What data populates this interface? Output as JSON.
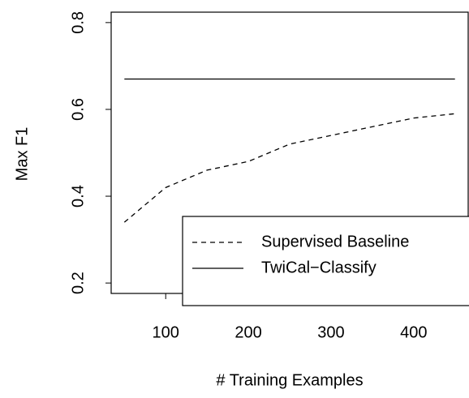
{
  "chart_data": {
    "type": "line",
    "x_label": "# Training Examples",
    "y_label": "Max F1",
    "x": [
      50,
      100,
      150,
      200,
      250,
      300,
      350,
      400,
      450
    ],
    "series": [
      {
        "name": "Supervised Baseline",
        "color": "#000000",
        "dash": "dashed",
        "values": [
          0.34,
          0.42,
          0.46,
          0.48,
          0.52,
          0.54,
          0.56,
          0.58,
          0.59
        ]
      },
      {
        "name": "TwiCal−Classify",
        "color": "#000000",
        "dash": "solid",
        "values": [
          0.67,
          0.67,
          0.67,
          0.67,
          0.67,
          0.67,
          0.67,
          0.67,
          0.67
        ]
      }
    ],
    "xlim": [
      34,
      466
    ],
    "ylim": [
      0.176,
      0.824
    ],
    "xticks": [
      100,
      200,
      300,
      400
    ],
    "yticks": [
      0.2,
      0.4,
      0.6,
      0.8
    ],
    "legend": "bottomright",
    "grid": false
  }
}
